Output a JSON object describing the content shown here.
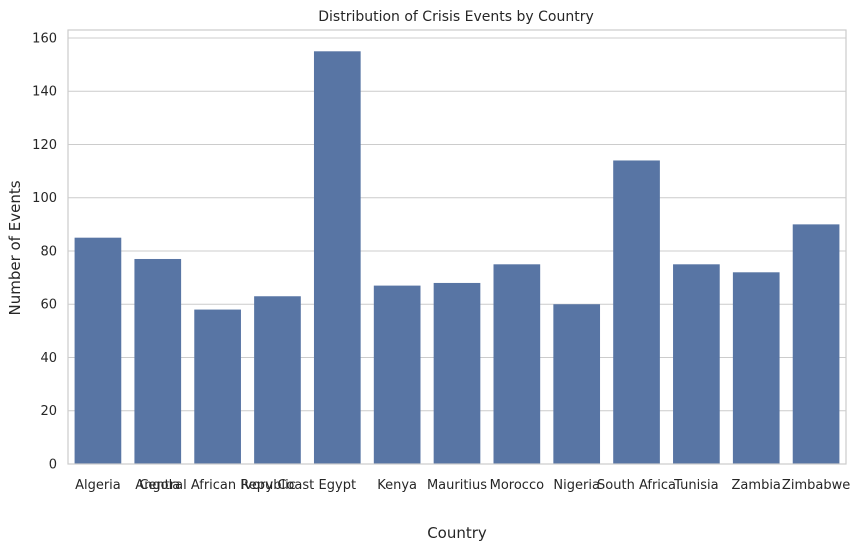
{
  "chart_data": {
    "type": "bar",
    "title": "Distribution of Crisis Events by Country",
    "xlabel": "Country",
    "ylabel": "Number of Events",
    "categories": [
      "Algeria",
      "Angola",
      "Central African Republic",
      "Ivory Coast",
      "Egypt",
      "Kenya",
      "Mauritius",
      "Morocco",
      "Nigeria",
      "South Africa",
      "Tunisia",
      "Zambia",
      "Zimbabwe"
    ],
    "values": [
      85,
      77,
      58,
      63,
      155,
      67,
      68,
      75,
      60,
      114,
      75,
      72,
      90
    ],
    "ylim": [
      0,
      163
    ],
    "yticks": [
      0,
      20,
      40,
      60,
      80,
      100,
      120,
      140,
      160
    ],
    "grid": true,
    "bar_color": "#5875a4",
    "grid_color": "#cccccc"
  }
}
